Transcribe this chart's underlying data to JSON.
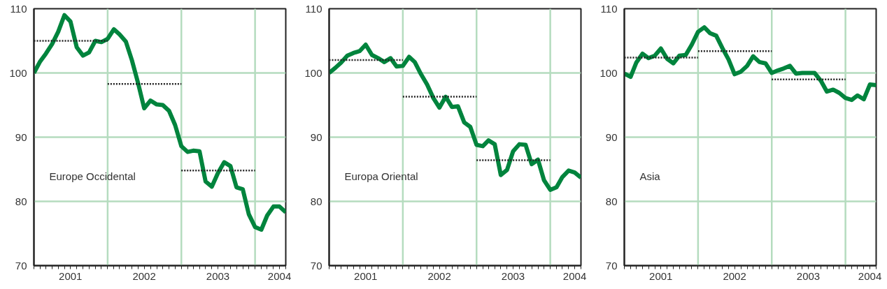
{
  "chart_data": [
    {
      "type": "line",
      "xlim": [
        "2001-01",
        "2004-06"
      ],
      "ylim": [
        70,
        110
      ],
      "yticks": [
        70,
        80,
        90,
        100,
        110
      ],
      "grid": "y",
      "annotations": [
        "Europe Occidental"
      ],
      "xticks": [
        {
          "value": "2001-01",
          "label": null
        },
        {
          "value": "2001-02",
          "label": null
        },
        {
          "value": "2001-03",
          "label": null
        },
        {
          "value": "2001-04",
          "label": null
        },
        {
          "value": "2001-05",
          "label": null
        },
        {
          "value": "2001-06",
          "label": null
        },
        {
          "value": "2001-07",
          "label": "2001"
        },
        {
          "value": "2001-08",
          "label": null
        },
        {
          "value": "2001-09",
          "label": null
        },
        {
          "value": "2001-10",
          "label": null
        },
        {
          "value": "2001-11",
          "label": null
        },
        {
          "value": "2001-12",
          "label": null
        },
        {
          "value": "2002-01",
          "label": null
        },
        {
          "value": "2002-02",
          "label": null
        },
        {
          "value": "2002-03",
          "label": null
        },
        {
          "value": "2002-04",
          "label": null
        },
        {
          "value": "2002-05",
          "label": null
        },
        {
          "value": "2002-06",
          "label": null
        },
        {
          "value": "2002-07",
          "label": "2002"
        },
        {
          "value": "2002-08",
          "label": null
        },
        {
          "value": "2002-09",
          "label": null
        },
        {
          "value": "2002-10",
          "label": null
        },
        {
          "value": "2002-11",
          "label": null
        },
        {
          "value": "2002-12",
          "label": null
        },
        {
          "value": "2003-01",
          "label": null
        },
        {
          "value": "2003-02",
          "label": null
        },
        {
          "value": "2003-03",
          "label": null
        },
        {
          "value": "2003-04",
          "label": null
        },
        {
          "value": "2003-05",
          "label": null
        },
        {
          "value": "2003-06",
          "label": null
        },
        {
          "value": "2003-07",
          "label": "2003"
        },
        {
          "value": "2003-08",
          "label": null
        },
        {
          "value": "2003-09",
          "label": null
        },
        {
          "value": "2003-10",
          "label": null
        },
        {
          "value": "2003-11",
          "label": null
        },
        {
          "value": "2003-12",
          "label": null
        },
        {
          "value": "2004-01",
          "label": null
        },
        {
          "value": "2004-02",
          "label": null
        },
        {
          "value": "2004-03",
          "label": null
        },
        {
          "value": "2004-04",
          "label": null
        },
        {
          "value": "2004-05",
          "label": "2004"
        },
        {
          "value": "2004-06",
          "label": null
        }
      ],
      "ref_lines": [
        {
          "axis": "x",
          "value": "2002-01",
          "color": "#b5dcbf"
        },
        {
          "axis": "x",
          "value": "2003-01",
          "color": "#b5dcbf"
        },
        {
          "axis": "x",
          "value": "2004-01",
          "color": "#b5dcbf"
        }
      ],
      "x": [
        "2001-01",
        "2001-02",
        "2001-03",
        "2001-04",
        "2001-05",
        "2001-06",
        "2001-07",
        "2001-08",
        "2001-09",
        "2001-10",
        "2001-11",
        "2001-12",
        "2002-01",
        "2002-02",
        "2002-03",
        "2002-04",
        "2002-05",
        "2002-06",
        "2002-07",
        "2002-08",
        "2002-09",
        "2002-10",
        "2002-11",
        "2002-12",
        "2003-01",
        "2003-02",
        "2003-03",
        "2003-04",
        "2003-05",
        "2003-06",
        "2003-07",
        "2003-08",
        "2003-09",
        "2003-10",
        "2003-11",
        "2003-12",
        "2004-01",
        "2004-02",
        "2004-03",
        "2004-04",
        "2004-05",
        "2004-06"
      ],
      "series": [
        {
          "color": "#00843d",
          "values": [
            100,
            101.8,
            103.0,
            104.5,
            106.4,
            109.0,
            108.0,
            104.0,
            102.7,
            103.2,
            105.0,
            104.8,
            105.3,
            106.8,
            106.0,
            104.9,
            102.0,
            98.4,
            94.5,
            95.7,
            95.1,
            95.0,
            94.1,
            91.9,
            88.6,
            87.7,
            87.9,
            87.8,
            83.1,
            82.3,
            84.4,
            86.1,
            85.5,
            82.2,
            81.9,
            78.0,
            76.0,
            75.6,
            77.8,
            79.2,
            79.2,
            78.3
          ]
        },
        {
          "type": "line",
          "line_style": "dotted",
          "color": "#222222",
          "x": [
            "2001-01",
            "2002-01"
          ],
          "values": [
            105.0,
            105.0
          ]
        },
        {
          "type": "line",
          "line_style": "dotted",
          "color": "#222222",
          "x": [
            "2002-01",
            "2003-01"
          ],
          "values": [
            98.3,
            98.3
          ]
        },
        {
          "type": "line",
          "line_style": "dotted",
          "color": "#222222",
          "x": [
            "2003-01",
            "2004-01"
          ],
          "values": [
            84.8,
            84.8
          ]
        }
      ]
    },
    {
      "type": "line",
      "xlim": [
        "2001-01",
        "2004-06"
      ],
      "ylim": [
        70,
        110
      ],
      "yticks": [
        70,
        80,
        90,
        100,
        110
      ],
      "grid": "y",
      "annotations": [
        "Europa Oriental"
      ],
      "xticks": [
        {
          "value": "2001-01",
          "label": null
        },
        {
          "value": "2001-02",
          "label": null
        },
        {
          "value": "2001-03",
          "label": null
        },
        {
          "value": "2001-04",
          "label": null
        },
        {
          "value": "2001-05",
          "label": null
        },
        {
          "value": "2001-06",
          "label": null
        },
        {
          "value": "2001-07",
          "label": "2001"
        },
        {
          "value": "2001-08",
          "label": null
        },
        {
          "value": "2001-09",
          "label": null
        },
        {
          "value": "2001-10",
          "label": null
        },
        {
          "value": "2001-11",
          "label": null
        },
        {
          "value": "2001-12",
          "label": null
        },
        {
          "value": "2002-01",
          "label": null
        },
        {
          "value": "2002-02",
          "label": null
        },
        {
          "value": "2002-03",
          "label": null
        },
        {
          "value": "2002-04",
          "label": null
        },
        {
          "value": "2002-05",
          "label": null
        },
        {
          "value": "2002-06",
          "label": null
        },
        {
          "value": "2002-07",
          "label": "2002"
        },
        {
          "value": "2002-08",
          "label": null
        },
        {
          "value": "2002-09",
          "label": null
        },
        {
          "value": "2002-10",
          "label": null
        },
        {
          "value": "2002-11",
          "label": null
        },
        {
          "value": "2002-12",
          "label": null
        },
        {
          "value": "2003-01",
          "label": null
        },
        {
          "value": "2003-02",
          "label": null
        },
        {
          "value": "2003-03",
          "label": null
        },
        {
          "value": "2003-04",
          "label": null
        },
        {
          "value": "2003-05",
          "label": null
        },
        {
          "value": "2003-06",
          "label": null
        },
        {
          "value": "2003-07",
          "label": "2003"
        },
        {
          "value": "2003-08",
          "label": null
        },
        {
          "value": "2003-09",
          "label": null
        },
        {
          "value": "2003-10",
          "label": null
        },
        {
          "value": "2003-11",
          "label": null
        },
        {
          "value": "2003-12",
          "label": null
        },
        {
          "value": "2004-01",
          "label": null
        },
        {
          "value": "2004-02",
          "label": null
        },
        {
          "value": "2004-03",
          "label": null
        },
        {
          "value": "2004-04",
          "label": null
        },
        {
          "value": "2004-05",
          "label": "2004"
        },
        {
          "value": "2004-06",
          "label": null
        }
      ],
      "ref_lines": [
        {
          "axis": "x",
          "value": "2002-01",
          "color": "#b5dcbf"
        },
        {
          "axis": "x",
          "value": "2003-01",
          "color": "#b5dcbf"
        },
        {
          "axis": "x",
          "value": "2004-01",
          "color": "#b5dcbf"
        }
      ],
      "x": [
        "2001-01",
        "2001-02",
        "2001-03",
        "2001-04",
        "2001-05",
        "2001-06",
        "2001-07",
        "2001-08",
        "2001-09",
        "2001-10",
        "2001-11",
        "2001-12",
        "2002-01",
        "2002-02",
        "2002-03",
        "2002-04",
        "2002-05",
        "2002-06",
        "2002-07",
        "2002-08",
        "2002-09",
        "2002-10",
        "2002-11",
        "2002-12",
        "2003-01",
        "2003-02",
        "2003-03",
        "2003-04",
        "2003-05",
        "2003-06",
        "2003-07",
        "2003-08",
        "2003-09",
        "2003-10",
        "2003-11",
        "2003-12",
        "2004-01",
        "2004-02",
        "2004-03",
        "2004-04",
        "2004-05",
        "2004-06"
      ],
      "series": [
        {
          "color": "#00843d",
          "values": [
            100,
            100.8,
            101.6,
            102.7,
            103.1,
            103.4,
            104.4,
            102.8,
            102.3,
            101.7,
            102.3,
            101.0,
            101.1,
            102.5,
            101.7,
            99.8,
            98.2,
            96.1,
            94.6,
            96.3,
            94.7,
            94.8,
            92.3,
            91.6,
            88.8,
            88.6,
            89.5,
            88.9,
            84.1,
            84.9,
            87.8,
            88.9,
            88.8,
            85.8,
            86.5,
            83.3,
            81.8,
            82.2,
            83.8,
            84.8,
            84.5,
            83.7
          ]
        },
        {
          "type": "line",
          "line_style": "dotted",
          "color": "#222222",
          "x": [
            "2001-01",
            "2002-01"
          ],
          "values": [
            102.0,
            102.0
          ]
        },
        {
          "type": "line",
          "line_style": "dotted",
          "color": "#222222",
          "x": [
            "2002-01",
            "2003-01"
          ],
          "values": [
            96.3,
            96.3
          ]
        },
        {
          "type": "line",
          "line_style": "dotted",
          "color": "#222222",
          "x": [
            "2003-01",
            "2004-01"
          ],
          "values": [
            86.4,
            86.4
          ]
        }
      ]
    },
    {
      "type": "line",
      "xlim": [
        "2001-01",
        "2004-06"
      ],
      "ylim": [
        70,
        110
      ],
      "yticks": [
        70,
        80,
        90,
        100,
        110
      ],
      "grid": "y",
      "annotations": [
        "Asia"
      ],
      "xticks": [
        {
          "value": "2001-01",
          "label": null
        },
        {
          "value": "2001-02",
          "label": null
        },
        {
          "value": "2001-03",
          "label": null
        },
        {
          "value": "2001-04",
          "label": null
        },
        {
          "value": "2001-05",
          "label": null
        },
        {
          "value": "2001-06",
          "label": null
        },
        {
          "value": "2001-07",
          "label": "2001"
        },
        {
          "value": "2001-08",
          "label": null
        },
        {
          "value": "2001-09",
          "label": null
        },
        {
          "value": "2001-10",
          "label": null
        },
        {
          "value": "2001-11",
          "label": null
        },
        {
          "value": "2001-12",
          "label": null
        },
        {
          "value": "2002-01",
          "label": null
        },
        {
          "value": "2002-02",
          "label": null
        },
        {
          "value": "2002-03",
          "label": null
        },
        {
          "value": "2002-04",
          "label": null
        },
        {
          "value": "2002-05",
          "label": null
        },
        {
          "value": "2002-06",
          "label": null
        },
        {
          "value": "2002-07",
          "label": "2002"
        },
        {
          "value": "2002-08",
          "label": null
        },
        {
          "value": "2002-09",
          "label": null
        },
        {
          "value": "2002-10",
          "label": null
        },
        {
          "value": "2002-11",
          "label": null
        },
        {
          "value": "2002-12",
          "label": null
        },
        {
          "value": "2003-01",
          "label": null
        },
        {
          "value": "2003-02",
          "label": null
        },
        {
          "value": "2003-03",
          "label": null
        },
        {
          "value": "2003-04",
          "label": null
        },
        {
          "value": "2003-05",
          "label": null
        },
        {
          "value": "2003-06",
          "label": null
        },
        {
          "value": "2003-07",
          "label": "2003"
        },
        {
          "value": "2003-08",
          "label": null
        },
        {
          "value": "2003-09",
          "label": null
        },
        {
          "value": "2003-10",
          "label": null
        },
        {
          "value": "2003-11",
          "label": null
        },
        {
          "value": "2003-12",
          "label": null
        },
        {
          "value": "2004-01",
          "label": null
        },
        {
          "value": "2004-02",
          "label": null
        },
        {
          "value": "2004-03",
          "label": null
        },
        {
          "value": "2004-04",
          "label": null
        },
        {
          "value": "2004-05",
          "label": "2004"
        },
        {
          "value": "2004-06",
          "label": null
        }
      ],
      "ref_lines": [
        {
          "axis": "x",
          "value": "2002-01",
          "color": "#b5dcbf"
        },
        {
          "axis": "x",
          "value": "2003-01",
          "color": "#b5dcbf"
        },
        {
          "axis": "x",
          "value": "2004-01",
          "color": "#b5dcbf"
        }
      ],
      "x": [
        "2001-01",
        "2001-02",
        "2001-03",
        "2001-04",
        "2001-05",
        "2001-06",
        "2001-07",
        "2001-08",
        "2001-09",
        "2001-10",
        "2001-11",
        "2001-12",
        "2002-01",
        "2002-02",
        "2002-03",
        "2002-04",
        "2002-05",
        "2002-06",
        "2002-07",
        "2002-08",
        "2002-09",
        "2002-10",
        "2002-11",
        "2002-12",
        "2003-01",
        "2003-02",
        "2003-03",
        "2003-04",
        "2003-05",
        "2003-06",
        "2003-07",
        "2003-08",
        "2003-09",
        "2003-10",
        "2003-11",
        "2003-12",
        "2004-01",
        "2004-02",
        "2004-03",
        "2004-04",
        "2004-05",
        "2004-06"
      ],
      "series": [
        {
          "color": "#00843d",
          "values": [
            99.9,
            99.4,
            101.6,
            103.0,
            102.3,
            102.7,
            103.8,
            102.2,
            101.5,
            102.7,
            102.8,
            104.4,
            106.4,
            107.1,
            106.2,
            105.8,
            103.9,
            102.1,
            99.8,
            100.2,
            101.1,
            102.6,
            101.7,
            101.5,
            100.0,
            100.4,
            100.7,
            101.1,
            99.9,
            100.0,
            100.0,
            100.0,
            98.8,
            97.1,
            97.4,
            96.9,
            96.1,
            95.8,
            96.5,
            95.9,
            98.2,
            98.1
          ]
        },
        {
          "type": "line",
          "line_style": "dotted",
          "color": "#222222",
          "x": [
            "2001-01",
            "2002-01"
          ],
          "values": [
            102.4,
            102.4
          ]
        },
        {
          "type": "line",
          "line_style": "dotted",
          "color": "#222222",
          "x": [
            "2002-01",
            "2003-01"
          ],
          "values": [
            103.4,
            103.4
          ]
        },
        {
          "type": "line",
          "line_style": "dotted",
          "color": "#222222",
          "x": [
            "2003-01",
            "2004-01"
          ],
          "values": [
            99.0,
            99.0
          ]
        }
      ]
    }
  ]
}
